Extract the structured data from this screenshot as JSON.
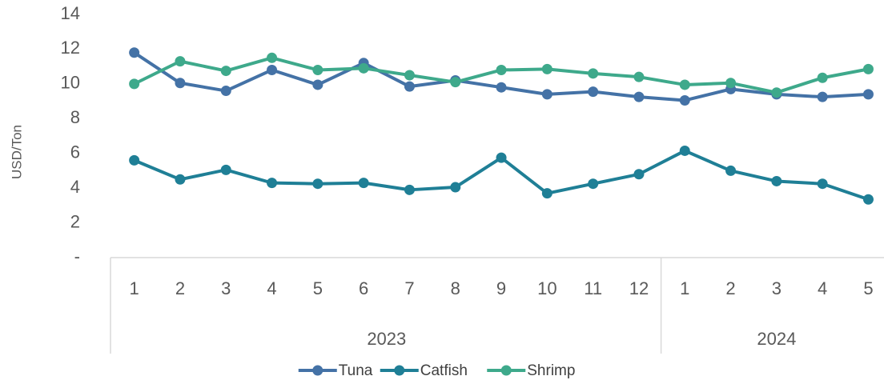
{
  "chart_data": {
    "type": "line",
    "y_label": "USD/Ton",
    "categories": [
      "1",
      "2",
      "3",
      "4",
      "5",
      "6",
      "7",
      "8",
      "9",
      "10",
      "11",
      "12",
      "1",
      "2",
      "3",
      "4",
      "5"
    ],
    "category_groups": [
      "2023",
      "2023",
      "2023",
      "2023",
      "2023",
      "2023",
      "2023",
      "2023",
      "2023",
      "2023",
      "2023",
      "2023",
      "2024",
      "2024",
      "2024",
      "2024",
      "2024"
    ],
    "ylim": [
      0,
      14
    ],
    "yticks": [
      {
        "value": 0,
        "label": "-"
      },
      2,
      4,
      6,
      8,
      10,
      12,
      14
    ],
    "grid": false,
    "legend": "bottom",
    "series": [
      {
        "name": "Tuna",
        "color": "#4472a6",
        "values": [
          11.8,
          10.05,
          9.6,
          10.8,
          9.95,
          11.2,
          9.85,
          10.2,
          9.8,
          9.4,
          9.55,
          9.25,
          9.05,
          9.7,
          9.4,
          9.25,
          9.4
        ]
      },
      {
        "name": "Catfish",
        "color": "#1f7f96",
        "values": [
          5.6,
          4.5,
          5.05,
          4.3,
          4.25,
          4.3,
          3.9,
          4.05,
          5.75,
          3.7,
          4.25,
          4.8,
          6.15,
          5.0,
          4.4,
          4.25,
          3.35
        ]
      },
      {
        "name": "Shrimp",
        "color": "#3ea98b",
        "values": [
          10.0,
          11.3,
          10.75,
          11.5,
          10.8,
          10.9,
          10.5,
          10.1,
          10.8,
          10.85,
          10.6,
          10.4,
          9.95,
          10.05,
          9.5,
          10.35,
          10.85
        ]
      }
    ]
  }
}
